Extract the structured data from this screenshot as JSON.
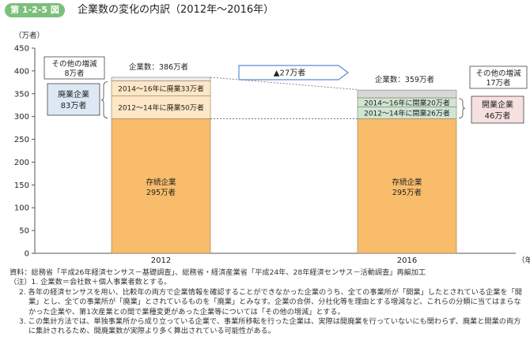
{
  "figure": {
    "number": "第 1-2-5 図",
    "title": "企業数の変化の内訳（2012年～2016年）"
  },
  "chart_data": {
    "type": "bar",
    "stacked": true,
    "yunit": "（万者）",
    "xunit": "（年）",
    "ylim": [
      0,
      450
    ],
    "yticks": [
      0,
      50,
      100,
      150,
      200,
      250,
      300,
      350,
      400,
      450
    ],
    "categories": [
      "2012",
      "2016"
    ],
    "bars": [
      {
        "category": "2012",
        "total_label": "企業数：386万者",
        "segments": [
          {
            "name": "存続企業",
            "value": 295,
            "label": [
              "存続企業",
              "295万者"
            ],
            "color": "#f8bc6b"
          },
          {
            "name": "2012～14年に廃業",
            "value": 50,
            "label": [
              "2012～14年に廃業50万者"
            ],
            "color": "#fde7c6"
          },
          {
            "name": "2014～16年に廃業",
            "value": 33,
            "label": [
              "2014～16年に廃業33万者"
            ],
            "color": "#fde7c6"
          },
          {
            "name": "その他の増減",
            "value": 8,
            "label": [],
            "color": "#ececec"
          }
        ]
      },
      {
        "category": "2016",
        "total_label": "企業数：359万者",
        "segments": [
          {
            "name": "存続企業",
            "value": 295,
            "label": [
              "存続企業",
              "295万者"
            ],
            "color": "#f8bc6b"
          },
          {
            "name": "2012～14年に開業",
            "value": 26,
            "label": [
              "2012～14年に開業26万者"
            ],
            "color": "#cfe6d3"
          },
          {
            "name": "2014～16年に開業",
            "value": 20,
            "label": [
              "2014～16年に開業20万者"
            ],
            "color": "#cfe6d3"
          },
          {
            "name": "その他の増減",
            "value": 17,
            "label": [],
            "color": "#d8d8d8"
          }
        ]
      }
    ],
    "annotations": {
      "change": "▲27万者",
      "left_other": [
        "その他の増減",
        "8万者"
      ],
      "left_closed": [
        "廃業企業",
        "83万者"
      ],
      "right_other": [
        "その他の増減",
        "17万者"
      ],
      "right_opened": [
        "開業企業",
        "46万者"
      ]
    },
    "colors": {
      "closed_box": "#dde8f4",
      "opened_box": "#f6e0e0",
      "arrow": "#5b8ccf"
    }
  },
  "notes": {
    "source": "資料：総務省「平成26年経済センサス－基礎調査」、総務省・経済産業省「平成24年、28年経済センサス－活動調査」再編加工",
    "n1": "（注）1. 企業数＝会社数＋個人事業者数とする。",
    "n2": "2. 各年の経済センサスを用い、比較年の両方で企業情報を確認することができなかった企業のうち、全ての事業所が「開業」したとされている企業を「開業」とし、全ての事業所が「廃業」とされているものを「廃業」とみなす。企業の合併、分社化等を理由とする増減など、これらの分類に当てはまらなかった企業や、第1次産業との間で業種変更があった企業等については「その他の増減」とする。",
    "n3": "3. この集計方法では、単独事業所から成り立っている企業で、事業所移転を行った企業は、実際は開廃業を行っていないにも関わらず、廃業と開業の両方に集計されるため、開廃業数が実際より多く算出されている可能性がある。"
  }
}
